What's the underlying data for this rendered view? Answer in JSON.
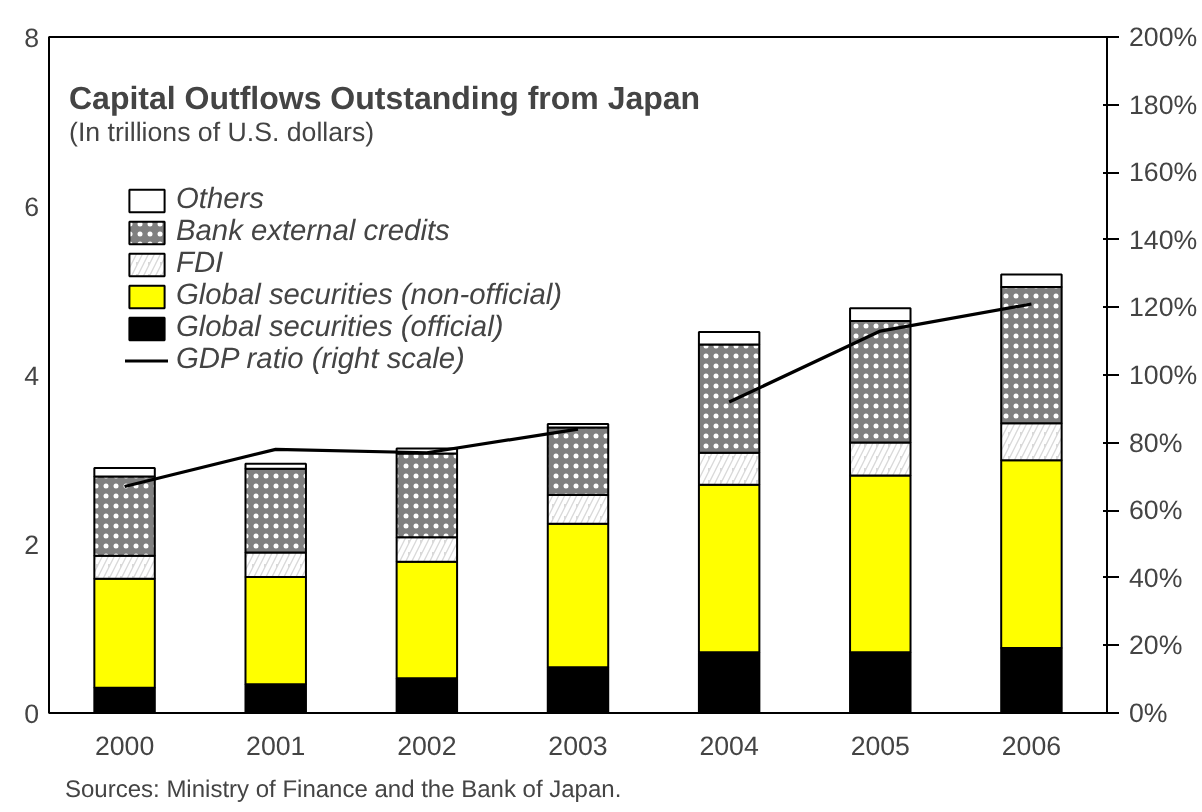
{
  "chart_data": {
    "type": "bar",
    "stacked": true,
    "title": "Capital Outflows Outstanding from Japan",
    "subtitle": "(In trillions of U.S. dollars)",
    "categories": [
      "2000",
      "2001",
      "2002",
      "2003",
      "2004",
      "2005",
      "2006"
    ],
    "series": [
      {
        "name": "Global securities (official)",
        "color": "#000000",
        "values": [
          0.3,
          0.34,
          0.41,
          0.54,
          0.72,
          0.72,
          0.77
        ]
      },
      {
        "name": "Global securities (non-official)",
        "color": "#ffff00",
        "values": [
          1.29,
          1.27,
          1.38,
          1.7,
          1.98,
          2.09,
          2.22
        ]
      },
      {
        "name": "FDI",
        "color": "#d9d9d9",
        "values": [
          0.27,
          0.29,
          0.29,
          0.34,
          0.38,
          0.39,
          0.44
        ]
      },
      {
        "name": "Bank external credits",
        "color": "#808080",
        "values": [
          0.94,
          0.99,
          0.99,
          0.8,
          1.28,
          1.44,
          1.61
        ]
      },
      {
        "name": "Others",
        "color": "#ffffff",
        "values": [
          0.1,
          0.06,
          0.06,
          0.04,
          0.15,
          0.15,
          0.15
        ]
      },
      {
        "name": "GDP ratio (right scale)",
        "type": "line",
        "axis": "y2",
        "color": "#000000",
        "values": [
          67,
          78,
          77,
          84,
          null,
          null,
          null
        ]
      },
      {
        "type": "line",
        "axis": "y2",
        "color": "#000000",
        "values": [
          null,
          null,
          null,
          null,
          92,
          113,
          121
        ]
      }
    ],
    "ylim": [
      0,
      8
    ],
    "yticks": [
      0,
      2,
      4,
      6,
      8
    ],
    "y2lim": [
      0,
      200
    ],
    "y2ticks": [
      {
        "value": 0,
        "label": "0%"
      },
      {
        "value": 20,
        "label": "20%"
      },
      {
        "value": 40,
        "label": "40%"
      },
      {
        "value": 60,
        "label": "60%"
      },
      {
        "value": 80,
        "label": "80%"
      },
      {
        "value": 100,
        "label": "100%"
      },
      {
        "value": 120,
        "label": "120%"
      },
      {
        "value": 140,
        "label": "140%"
      },
      {
        "value": 160,
        "label": "160%"
      },
      {
        "value": 180,
        "label": "180%"
      },
      {
        "value": 200,
        "label": "200%"
      }
    ],
    "grid": false,
    "legend": "top left",
    "annotations": [
      "Sources: Ministry of Finance and the Bank of Japan."
    ]
  }
}
